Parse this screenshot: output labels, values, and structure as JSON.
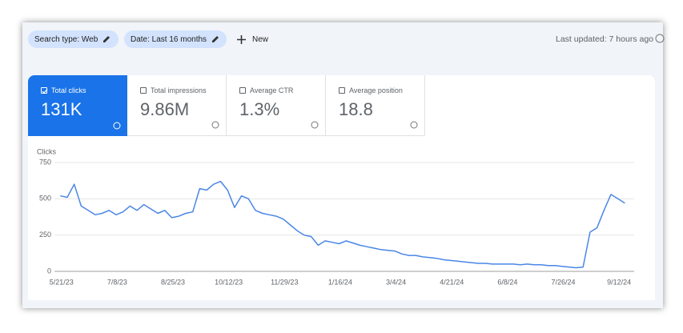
{
  "filters": {
    "chips": [
      "Search type: Web",
      "Date: Last 16 months"
    ],
    "new": "New",
    "last_updated": "Last updated: 7 hours ago"
  },
  "metrics": [
    {
      "label": "Total clicks",
      "value": "131K",
      "selected": true
    },
    {
      "label": "Total impressions",
      "value": "9.86M",
      "selected": false
    },
    {
      "label": "Average CTR",
      "value": "1.3%",
      "selected": false
    },
    {
      "label": "Average position",
      "value": "18.8",
      "selected": false
    }
  ],
  "chart_data": {
    "type": "line",
    "y_label": "Clicks",
    "color": "#4a86e8",
    "grid": true,
    "x": [
      "5/20/23",
      "5/26/23",
      "6/1/23",
      "6/7/23",
      "6/13/23",
      "6/19/23",
      "6/25/23",
      "7/1/23",
      "7/7/23",
      "7/13/23",
      "7/19/23",
      "7/25/23",
      "7/31/23",
      "8/6/23",
      "8/12/23",
      "8/18/23",
      "8/24/23",
      "8/30/23",
      "9/5/23",
      "9/11/23",
      "9/17/23",
      "9/23/23",
      "9/29/23",
      "10/5/23",
      "10/11/23",
      "10/17/23",
      "10/23/23",
      "10/29/23",
      "11/4/23",
      "11/10/23",
      "11/16/23",
      "11/22/23",
      "11/28/23",
      "12/4/23",
      "12/10/23",
      "12/16/23",
      "12/22/23",
      "12/28/23",
      "1/3/24",
      "1/9/24",
      "1/15/24",
      "1/21/24",
      "1/27/24",
      "2/2/24",
      "2/8/24",
      "2/14/24",
      "2/20/24",
      "2/26/24",
      "3/3/24",
      "3/9/24",
      "3/15/24",
      "3/21/24",
      "3/27/24",
      "4/2/24",
      "4/8/24",
      "4/14/24",
      "4/20/24",
      "4/26/24",
      "5/2/24",
      "5/8/24",
      "5/14/24",
      "5/20/24",
      "5/26/24",
      "6/1/24",
      "6/7/24",
      "6/13/24",
      "6/19/24",
      "6/25/24",
      "7/1/24",
      "7/7/24",
      "7/13/24",
      "7/19/24",
      "7/25/24",
      "7/31/24",
      "8/6/24",
      "8/12/24",
      "8/18/24",
      "8/24/24",
      "8/30/24",
      "9/5/24",
      "9/11/24",
      "9/17/24"
    ],
    "values": [
      520,
      510,
      600,
      450,
      420,
      390,
      400,
      420,
      390,
      410,
      450,
      420,
      460,
      430,
      400,
      420,
      370,
      380,
      400,
      410,
      570,
      560,
      600,
      620,
      560,
      440,
      520,
      500,
      420,
      400,
      390,
      380,
      360,
      320,
      280,
      250,
      240,
      180,
      210,
      200,
      190,
      210,
      195,
      180,
      170,
      160,
      150,
      145,
      140,
      120,
      110,
      110,
      100,
      95,
      90,
      80,
      75,
      70,
      65,
      60,
      55,
      55,
      50,
      50,
      50,
      50,
      45,
      50,
      45,
      45,
      40,
      40,
      35,
      30,
      25,
      30,
      270,
      300,
      420,
      530,
      500,
      470
    ],
    "xlim": [
      "5/15/23",
      "9/25/24"
    ],
    "xticks": [
      "5/21/23",
      "7/8/23",
      "8/25/23",
      "10/12/23",
      "11/29/23",
      "1/16/24",
      "3/4/24",
      "4/21/24",
      "6/8/24",
      "7/26/24",
      "9/12/24"
    ],
    "ylim": [
      0,
      750
    ],
    "yticks": [
      0,
      250,
      500,
      750
    ]
  }
}
